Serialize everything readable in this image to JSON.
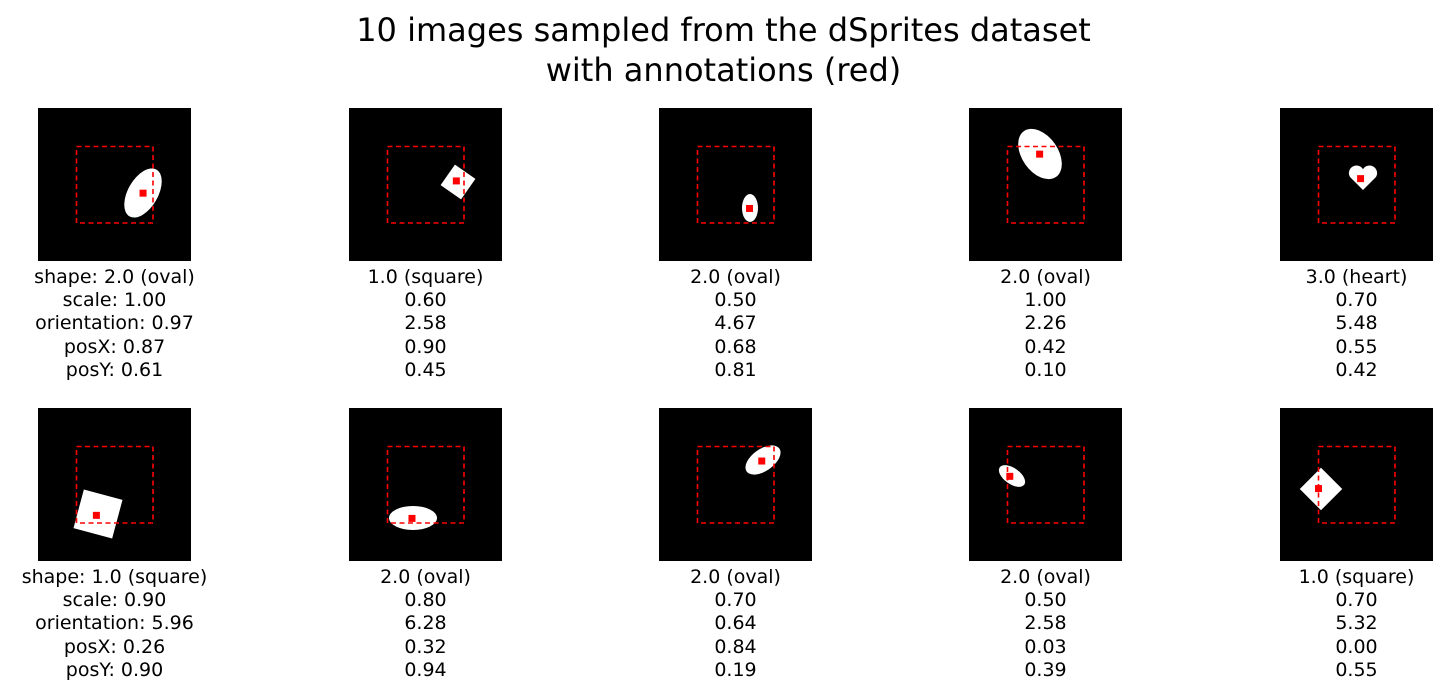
{
  "title": {
    "line1": "10 images sampled from the dSprites dataset",
    "line2": "with annotations (red)"
  },
  "colors": {
    "background": "#000000",
    "shape": "#ffffff",
    "annotation": "#ff0000"
  },
  "samples": [
    {
      "shape": "shape: 2.0 (oval)",
      "scale": "scale: 1.00",
      "orientation": "orientation: 0.97",
      "posX": "posX: 0.87",
      "posY": "posY: 0.61",
      "shape_value": 2.0,
      "scale_value": 1.0,
      "orientation_value": 0.97,
      "posX_value": 0.87,
      "posY_value": 0.61
    },
    {
      "shape": "1.0 (square)",
      "scale": "0.60",
      "orientation": "2.58",
      "posX": "0.90",
      "posY": "0.45",
      "shape_value": 1.0,
      "scale_value": 0.6,
      "orientation_value": 2.58,
      "posX_value": 0.9,
      "posY_value": 0.45
    },
    {
      "shape": "2.0 (oval)",
      "scale": "0.50",
      "orientation": "4.67",
      "posX": "0.68",
      "posY": "0.81",
      "shape_value": 2.0,
      "scale_value": 0.5,
      "orientation_value": 4.67,
      "posX_value": 0.68,
      "posY_value": 0.81
    },
    {
      "shape": "2.0 (oval)",
      "scale": "1.00",
      "orientation": "2.26",
      "posX": "0.42",
      "posY": "0.10",
      "shape_value": 2.0,
      "scale_value": 1.0,
      "orientation_value": 2.26,
      "posX_value": 0.42,
      "posY_value": 0.1
    },
    {
      "shape": "3.0 (heart)",
      "scale": "0.70",
      "orientation": "5.48",
      "posX": "0.55",
      "posY": "0.42",
      "shape_value": 3.0,
      "scale_value": 0.7,
      "orientation_value": 5.48,
      "posX_value": 0.55,
      "posY_value": 0.42
    },
    {
      "shape": "shape: 1.0 (square)",
      "scale": "scale: 0.90",
      "orientation": "orientation: 5.96",
      "posX": "posX: 0.26",
      "posY": "posY: 0.90",
      "shape_value": 1.0,
      "scale_value": 0.9,
      "orientation_value": 5.96,
      "posX_value": 0.26,
      "posY_value": 0.9
    },
    {
      "shape": "2.0 (oval)",
      "scale": "0.80",
      "orientation": "6.28",
      "posX": "0.32",
      "posY": "0.94",
      "shape_value": 2.0,
      "scale_value": 0.8,
      "orientation_value": 6.28,
      "posX_value": 0.32,
      "posY_value": 0.94
    },
    {
      "shape": "2.0 (oval)",
      "scale": "0.70",
      "orientation": "0.64",
      "posX": "0.84",
      "posY": "0.19",
      "shape_value": 2.0,
      "scale_value": 0.7,
      "orientation_value": 0.64,
      "posX_value": 0.84,
      "posY_value": 0.19
    },
    {
      "shape": "2.0 (oval)",
      "scale": "0.50",
      "orientation": "2.58",
      "posX": "0.03",
      "posY": "0.39",
      "shape_value": 2.0,
      "scale_value": 0.5,
      "orientation_value": 2.58,
      "posX_value": 0.03,
      "posY_value": 0.39
    },
    {
      "shape": "1.0 (square)",
      "scale": "0.70",
      "orientation": "5.32",
      "posX": "0.00",
      "posY": "0.55",
      "shape_value": 1.0,
      "scale_value": 0.7,
      "orientation_value": 5.32,
      "posX_value": 0.0,
      "posY_value": 0.55
    }
  ]
}
